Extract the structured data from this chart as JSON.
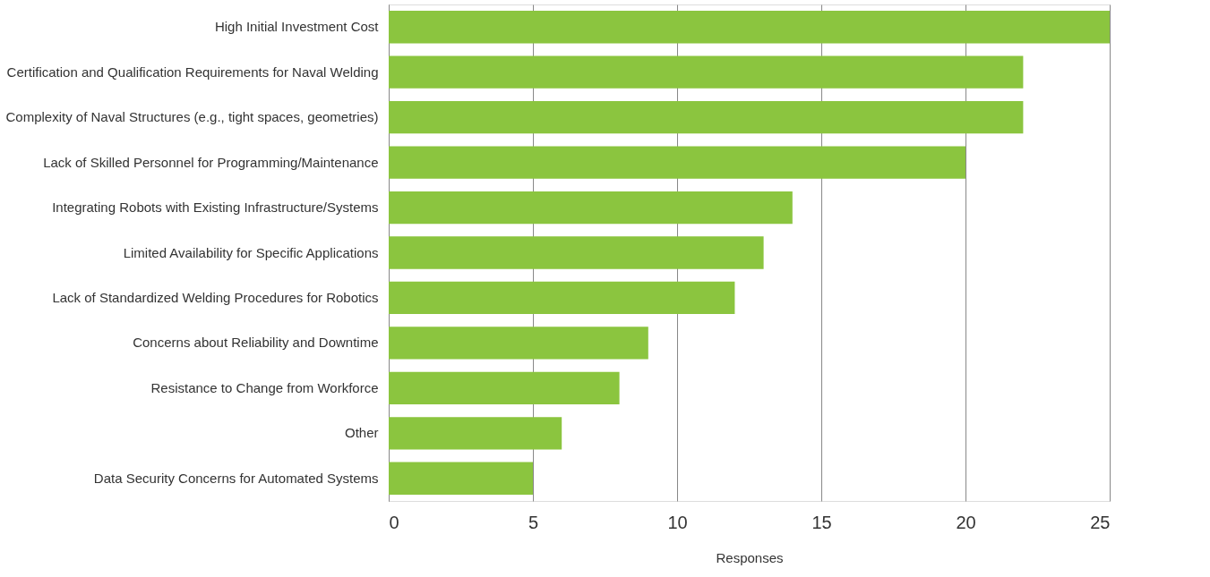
{
  "chart_data": {
    "type": "bar",
    "orientation": "horizontal",
    "xlabel": "Responses",
    "categories": [
      "High Initial Investment Cost",
      "Certification and Qualification Requirements for Naval Welding",
      "Complexity of Naval Structures (e.g., tight spaces, geometries)",
      "Lack of Skilled Personnel for Programming/Maintenance",
      "Integrating Robots with Existing Infrastructure/Systems",
      "Limited Availability for Specific Applications",
      "Lack of Standardized Welding Procedures for Robotics",
      "Concerns about Reliability and Downtime",
      "Resistance to Change from Workforce",
      "Other",
      "Data Security Concerns for Automated Systems"
    ],
    "values": [
      25,
      22,
      22,
      20,
      14,
      13,
      12,
      9,
      8,
      6,
      5
    ],
    "color": "#8bc53f",
    "xlim": [
      0,
      25
    ],
    "xticks": [
      0,
      5,
      10,
      15,
      20,
      25
    ],
    "grid": "x"
  }
}
